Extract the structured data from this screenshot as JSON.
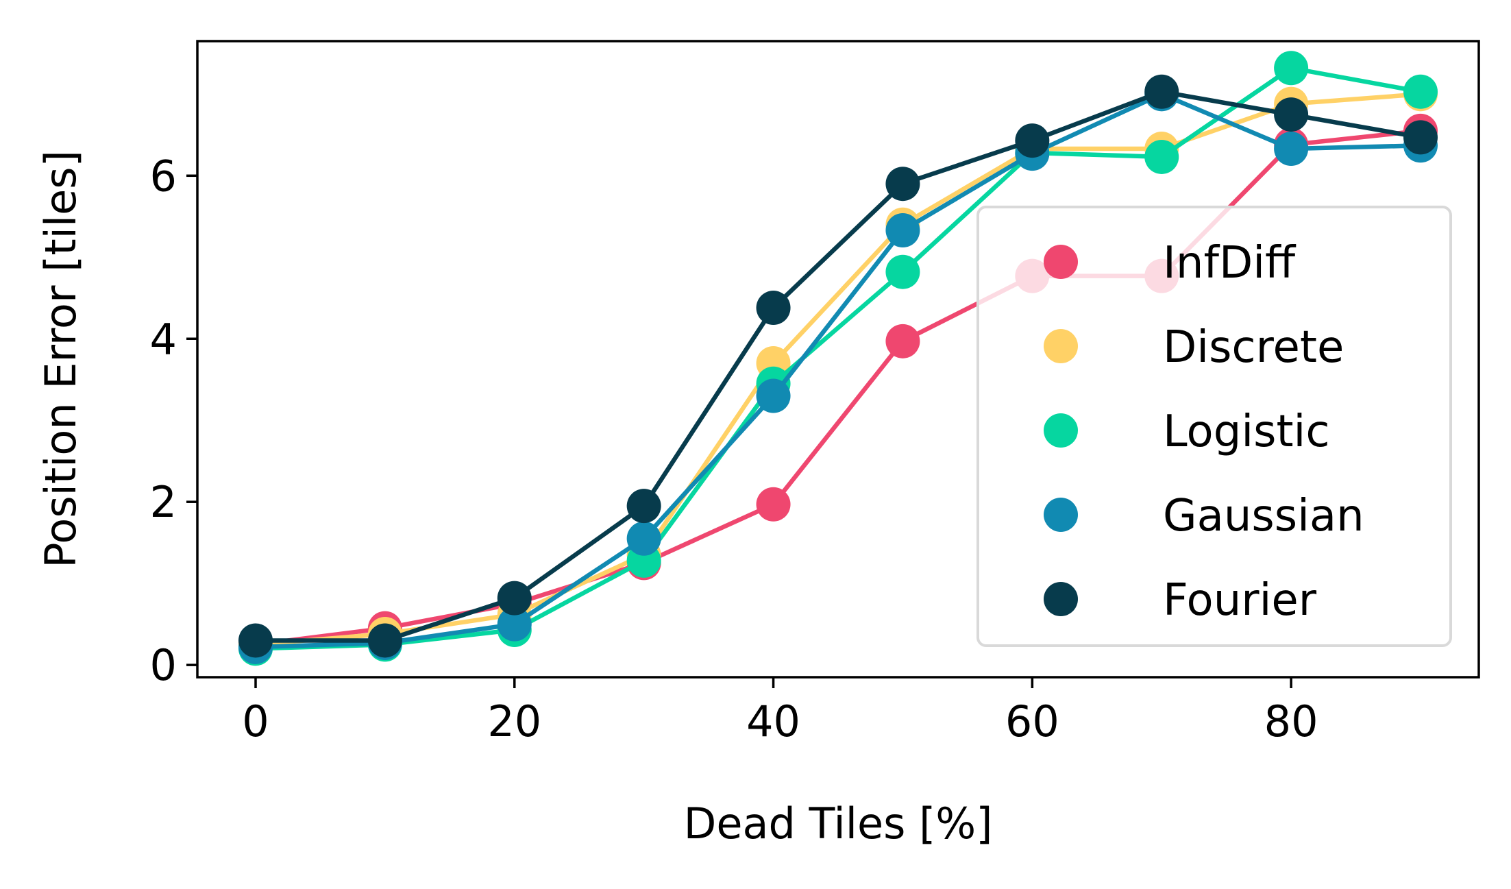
{
  "chart_data": {
    "type": "line",
    "xlabel": "Dead Tiles [%]",
    "ylabel": "Position Error [tiles]",
    "xlim": [
      -4.5,
      94.5
    ],
    "ylim": [
      -0.15,
      7.65
    ],
    "xticks": [
      0,
      20,
      40,
      60,
      80
    ],
    "yticks": [
      0,
      2,
      4,
      6
    ],
    "x": [
      0,
      10,
      20,
      30,
      40,
      50,
      60,
      70,
      80,
      90
    ],
    "grid": false,
    "legend_position": "center-right",
    "series": [
      {
        "name": "InfDiff",
        "color": "#EF476F",
        "values": [
          0.25,
          0.45,
          0.75,
          1.25,
          1.97,
          3.97,
          4.77,
          4.77,
          6.38,
          6.55
        ]
      },
      {
        "name": "Discrete",
        "color": "#FFD166",
        "values": [
          0.25,
          0.38,
          0.62,
          1.35,
          3.7,
          5.4,
          6.33,
          6.33,
          6.88,
          7.0
        ]
      },
      {
        "name": "Logistic",
        "color": "#06D6A0",
        "values": [
          0.2,
          0.25,
          0.43,
          1.28,
          3.45,
          4.82,
          6.28,
          6.23,
          7.32,
          7.03
        ]
      },
      {
        "name": "Gaussian",
        "color": "#118AB2",
        "values": [
          0.22,
          0.27,
          0.5,
          1.55,
          3.3,
          5.33,
          6.27,
          7.0,
          6.33,
          6.37
        ]
      },
      {
        "name": "Fourier",
        "color": "#073B4C",
        "values": [
          0.3,
          0.3,
          0.82,
          1.95,
          4.38,
          5.9,
          6.43,
          7.03,
          6.75,
          6.47
        ]
      }
    ]
  }
}
